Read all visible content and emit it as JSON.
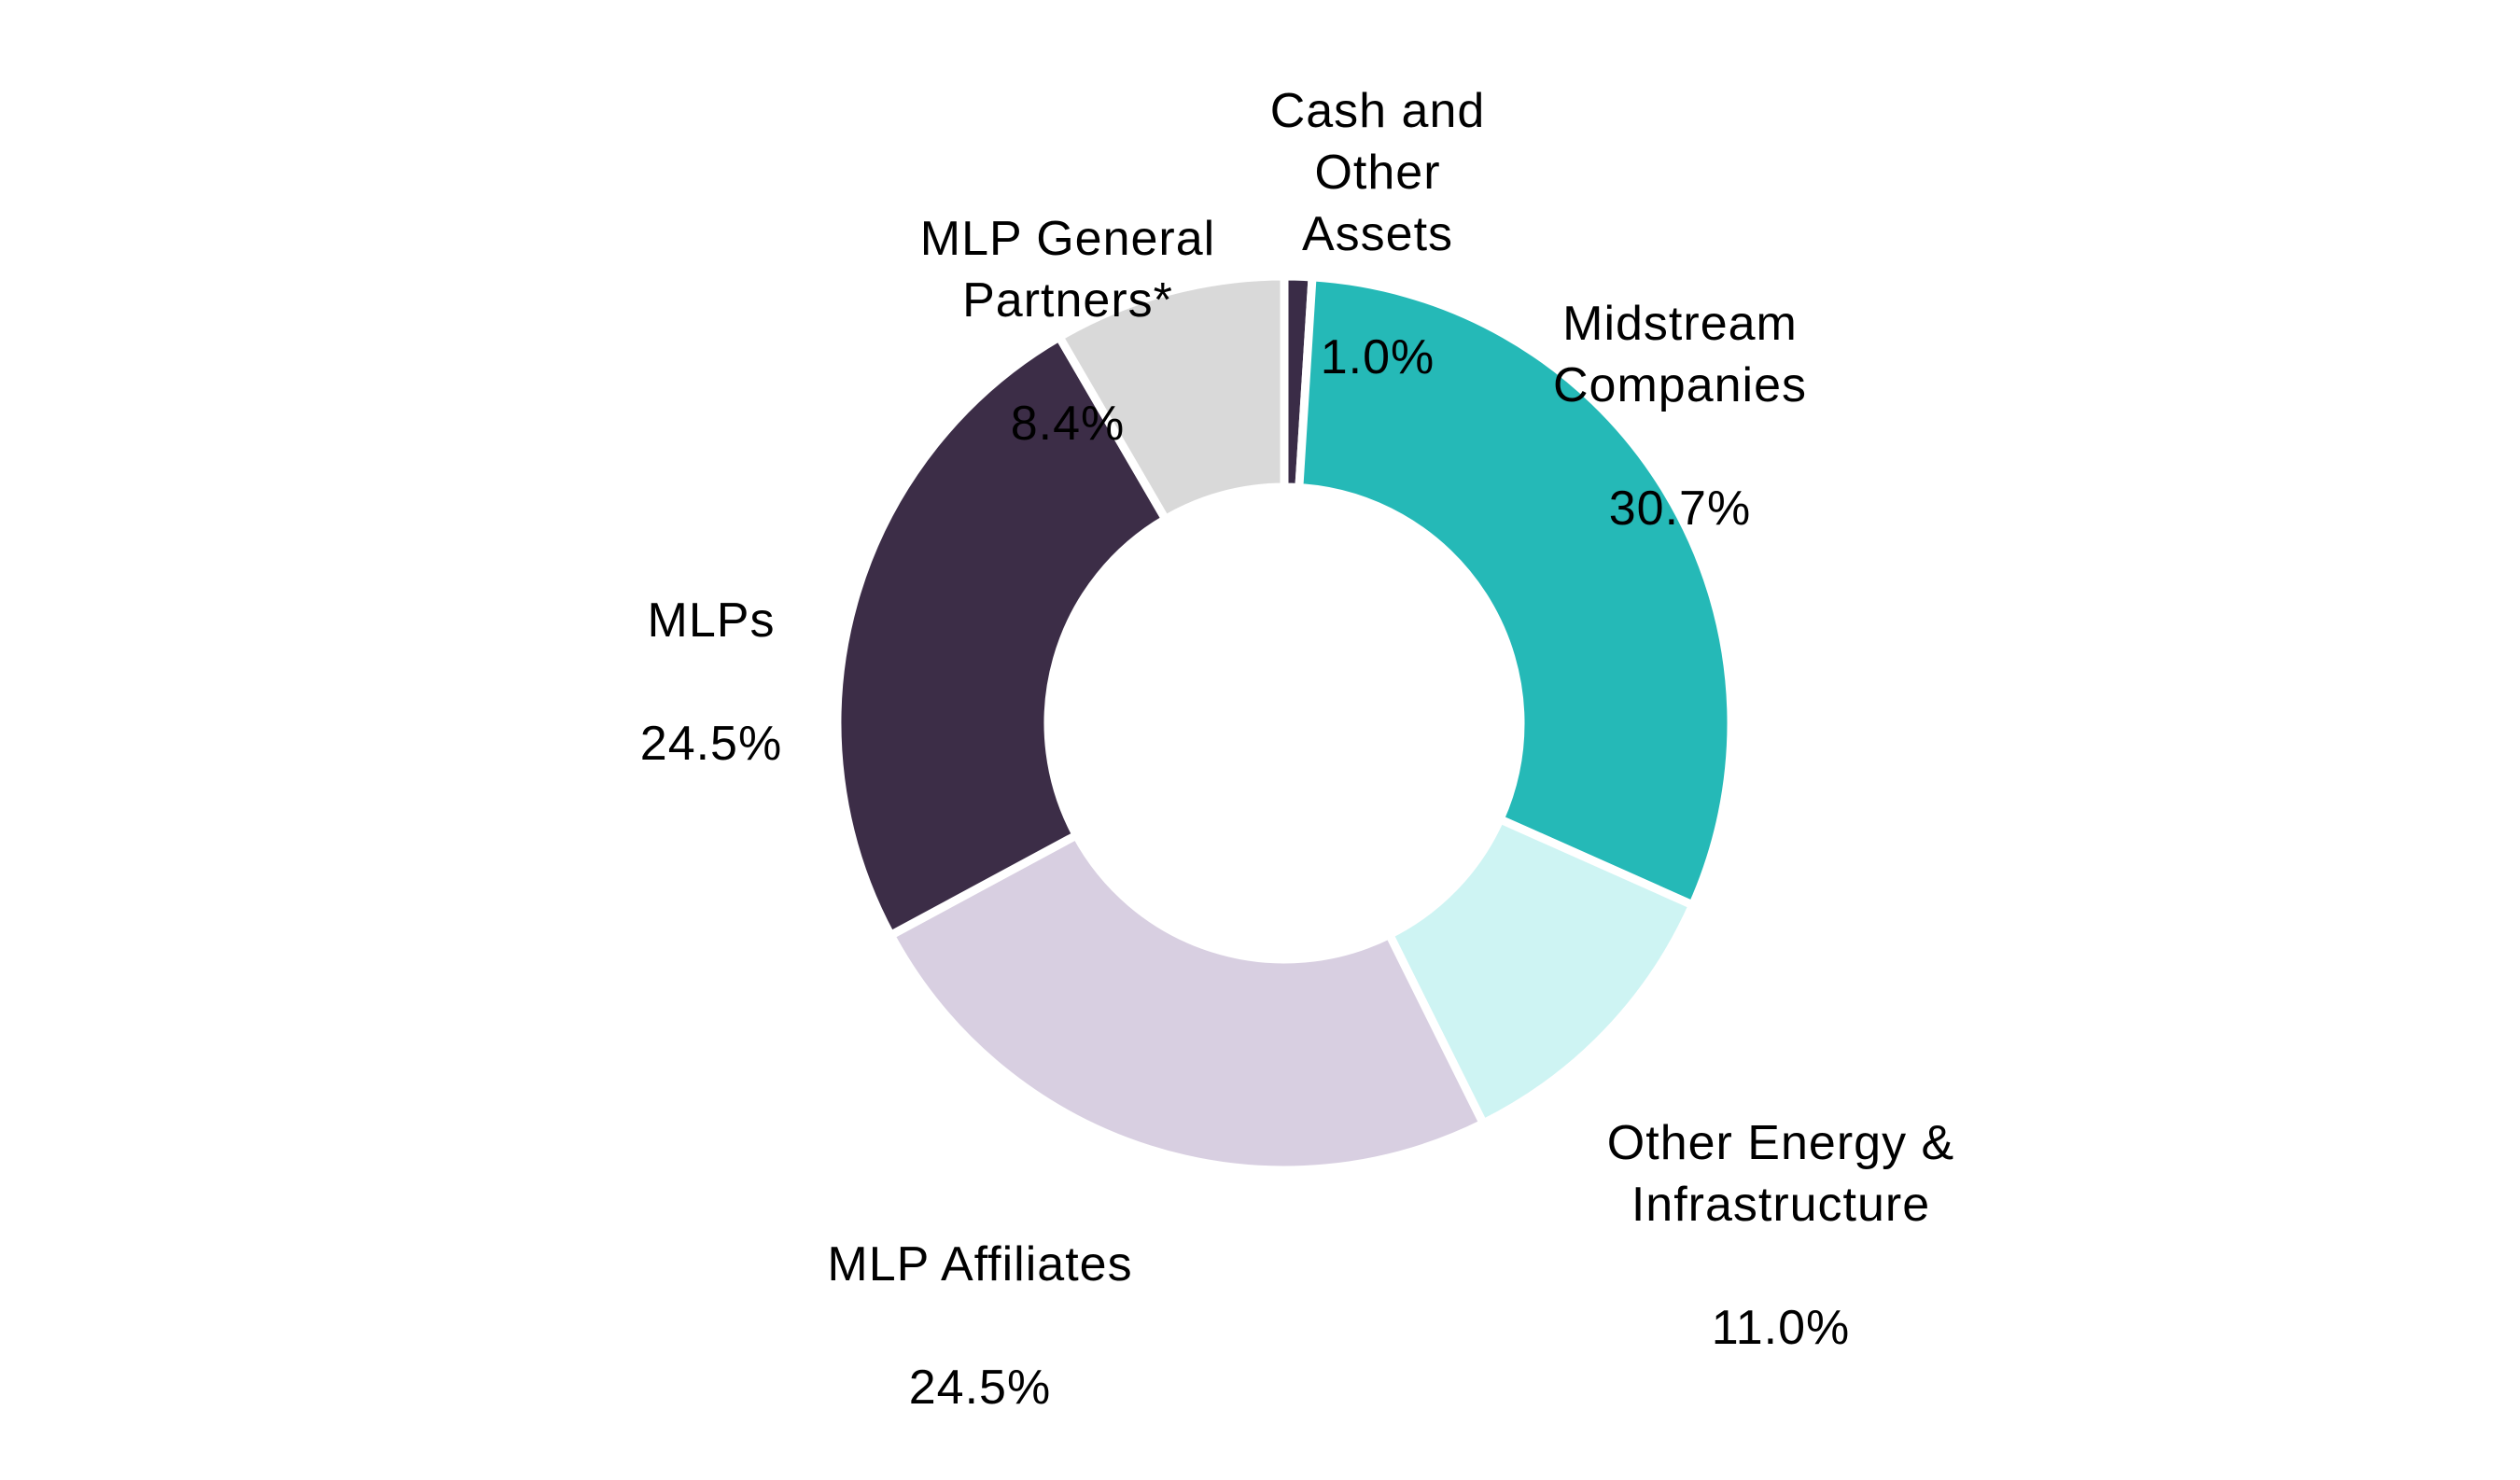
{
  "chart_data": {
    "type": "pie",
    "variant": "donut",
    "title": "",
    "start_angle": "12 o'clock",
    "direction": "clockwise",
    "slices": [
      {
        "label": "Cash and Other Assets",
        "value": 1.0,
        "display": "1.0%",
        "color": "#3a2c47"
      },
      {
        "label": "Midstream Companies",
        "value": 30.7,
        "display": "30.7%",
        "color": "#25b9b7"
      },
      {
        "label": "Other Energy & Infrastructure",
        "value": 11.0,
        "display": "11.0%",
        "color": "#cef4f3"
      },
      {
        "label": "MLP Affiliates",
        "value": 24.5,
        "display": "24.5%",
        "color": "#d8cfe1"
      },
      {
        "label": "MLPs",
        "value": 24.5,
        "display": "24.5%",
        "color": "#3c2d47"
      },
      {
        "label": "MLP General Partners*",
        "value": 8.4,
        "display": "8.4%",
        "color": "#d9d9d9"
      }
    ],
    "legend": "none (direct labels)"
  },
  "labels": {
    "cash": {
      "name": "Cash and\nOther\nAssets",
      "pct": "1.0%"
    },
    "midstream": {
      "name": "Midstream\nCompanies",
      "pct": "30.7%"
    },
    "other_energy": {
      "name": "Other Energy &\nInfrastructure",
      "pct": "11.0%"
    },
    "affiliates": {
      "name": "MLP Affiliates",
      "pct": "24.5%"
    },
    "mlps": {
      "name": "MLPs",
      "pct": "24.5%"
    },
    "gp": {
      "name": "MLP General\nPartners*",
      "pct": "8.4%"
    }
  }
}
